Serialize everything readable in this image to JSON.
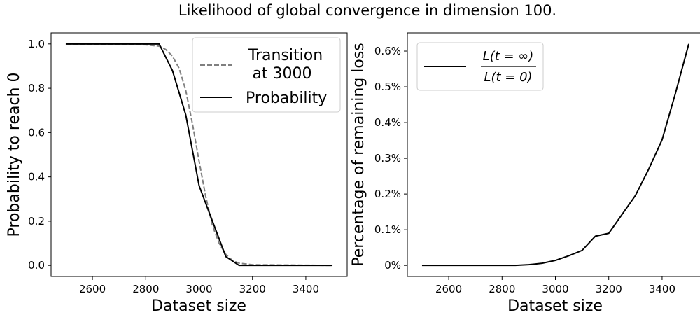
{
  "figure": {
    "title": "Likelihood of global convergence in dimension 100."
  },
  "chart_data": [
    {
      "type": "line",
      "xlabel": "Dataset size",
      "ylabel": "Probability to reach 0",
      "xlim": [
        2445,
        3555
      ],
      "ylim": [
        -0.05,
        1.05
      ],
      "xticks": [
        2600,
        2800,
        3000,
        3200,
        3400
      ],
      "yticks": [
        0.0,
        0.2,
        0.4,
        0.6,
        0.8,
        1.0
      ],
      "ytick_labels": [
        "0.0",
        "0.2",
        "0.4",
        "0.6",
        "0.8",
        "1.0"
      ],
      "grid": false,
      "legend": {
        "placement": "top-right",
        "entries": [
          {
            "label_line1": "Transition",
            "label_line2": "at 3000",
            "style": "dashed",
            "color": "#808080"
          },
          {
            "label_line1": "Probability",
            "label_line2": "",
            "style": "solid",
            "color": "#000000"
          }
        ]
      },
      "series": [
        {
          "name": "Transition at 3000",
          "style": "dashed",
          "color": "#808080",
          "x": [
            2500,
            2800,
            2850,
            2875,
            2900,
            2925,
            2950,
            2975,
            3000,
            3025,
            3050,
            3075,
            3100,
            3125,
            3150,
            3200,
            3500
          ],
          "y": [
            1.0,
            0.996,
            0.99,
            0.975,
            0.945,
            0.89,
            0.79,
            0.64,
            0.47,
            0.31,
            0.18,
            0.1,
            0.05,
            0.022,
            0.01,
            0.003,
            0.0
          ]
        },
        {
          "name": "Probability",
          "style": "solid",
          "color": "#000000",
          "x": [
            2500,
            2850,
            2900,
            2950,
            3000,
            3050,
            3100,
            3150,
            3200,
            3300,
            3400,
            3500
          ],
          "y": [
            1.0,
            1.0,
            0.88,
            0.68,
            0.36,
            0.2,
            0.04,
            0.0,
            0.0,
            0.0,
            0.0,
            0.0
          ]
        }
      ]
    },
    {
      "type": "line",
      "xlabel": "Dataset size",
      "ylabel": "Percentage of remaining loss",
      "xlim": [
        2445,
        3555
      ],
      "ylim": [
        -0.031,
        0.651
      ],
      "xticks": [
        2600,
        2800,
        3000,
        3200,
        3400
      ],
      "yticks": [
        0.0,
        0.1,
        0.2,
        0.3,
        0.4,
        0.5,
        0.6
      ],
      "ytick_labels": [
        "0%",
        "0.1%",
        "0.2%",
        "0.3%",
        "0.4%",
        "0.5%",
        "0.6%"
      ],
      "grid": false,
      "legend": {
        "placement": "top-left",
        "entries": [
          {
            "numerator": "L(t = ∞)",
            "denominator": "L(t = 0)",
            "style": "solid",
            "color": "#000000"
          }
        ]
      },
      "series": [
        {
          "style": "solid",
          "color": "#000000",
          "x": [
            2500,
            2600,
            2700,
            2800,
            2850,
            2900,
            2950,
            3000,
            3050,
            3100,
            3150,
            3200,
            3250,
            3300,
            3350,
            3400,
            3450,
            3500
          ],
          "y": [
            0.0,
            0.0,
            0.0,
            0.0,
            0.0,
            0.002,
            0.006,
            0.014,
            0.027,
            0.042,
            0.082,
            0.09,
            0.143,
            0.196,
            0.27,
            0.352,
            0.482,
            0.62
          ]
        }
      ]
    }
  ]
}
